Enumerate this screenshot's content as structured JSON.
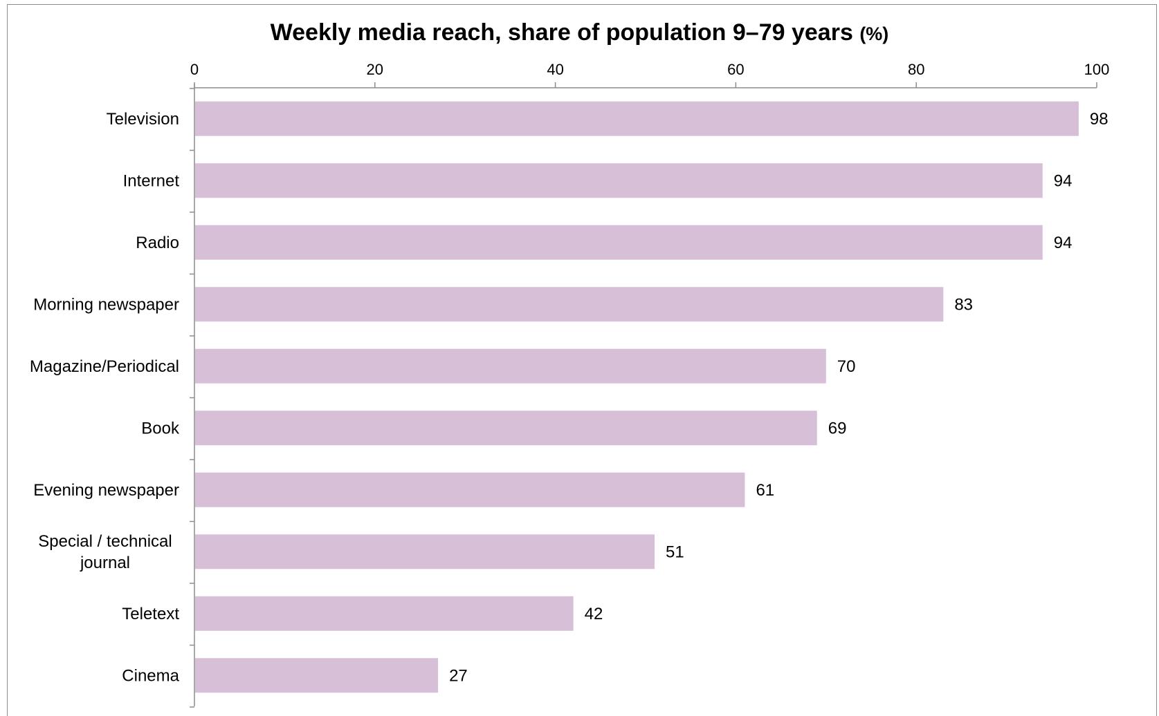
{
  "chart_data": {
    "type": "bar",
    "orientation": "horizontal",
    "title": "Weekly media reach, share of population 9–79 years",
    "title_unit": "(%)",
    "xlabel": "",
    "ylabel": "",
    "categories": [
      [
        "Television"
      ],
      [
        "Internet"
      ],
      [
        "Radio"
      ],
      [
        "Morning newspaper"
      ],
      [
        "Magazine/Periodical"
      ],
      [
        "Book"
      ],
      [
        "Evening newspaper"
      ],
      [
        "Special / technical",
        "journal"
      ],
      [
        "Teletext"
      ],
      [
        "Cinema"
      ]
    ],
    "values": [
      98,
      94,
      94,
      83,
      70,
      69,
      61,
      51,
      42,
      27
    ],
    "xlim": [
      0,
      100
    ],
    "x_ticks": [
      0,
      20,
      40,
      60,
      80,
      100
    ],
    "x_axis_position": "top",
    "grid": false,
    "data_labels": true,
    "colors": {
      "bar": "#d8bfd8",
      "axis": "#8c8c8c",
      "text": "#000000"
    }
  }
}
